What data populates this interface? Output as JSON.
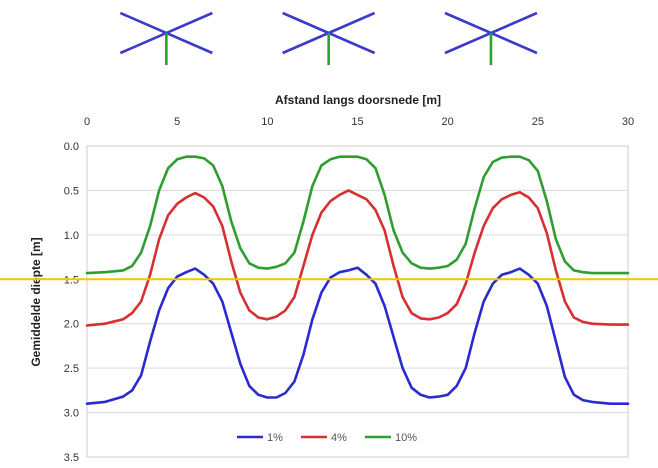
{
  "chart_data": {
    "type": "line",
    "xlabel": "Afstand langs doorsnede [m]",
    "ylabel": "Gemiddelde diepte [m]",
    "x_axis_position": "top",
    "y_inverted": true,
    "xlim": [
      0,
      30
    ],
    "ylim": [
      0,
      3.5
    ],
    "x_ticks": [
      "0",
      "5",
      "10",
      "15",
      "20",
      "25",
      "30"
    ],
    "y_ticks": [
      "0.0",
      "0.5",
      "1.0",
      "1.5",
      "2.0",
      "2.5",
      "3.0",
      "3.5"
    ],
    "grid": "horizontal",
    "legend_position": "bottom-center",
    "reference_line": {
      "y": 1.5,
      "color": "#f5c400"
    },
    "crosses": {
      "x": [
        4.4,
        13.4,
        22.4
      ],
      "arm_color": "#3b3bc8",
      "stem_color": "#2ca02c"
    },
    "series": [
      {
        "name": "1%",
        "color": "#2a2ad0",
        "x": [
          0,
          1,
          2,
          2.5,
          3,
          3.5,
          4,
          4.5,
          5,
          5.5,
          6,
          6.5,
          7,
          7.5,
          8,
          8.5,
          9,
          9.5,
          10,
          10.5,
          11,
          11.5,
          12,
          12.5,
          13,
          13.5,
          14,
          14.5,
          15,
          15.5,
          16,
          16.5,
          17,
          17.5,
          18,
          18.5,
          19,
          19.5,
          20,
          20.5,
          21,
          21.5,
          22,
          22.5,
          23,
          23.5,
          24,
          24.5,
          25,
          25.5,
          26,
          26.5,
          27,
          27.5,
          28,
          29,
          30
        ],
        "values": [
          2.9,
          2.88,
          2.82,
          2.75,
          2.58,
          2.2,
          1.85,
          1.6,
          1.47,
          1.42,
          1.38,
          1.45,
          1.55,
          1.75,
          2.1,
          2.45,
          2.7,
          2.8,
          2.83,
          2.83,
          2.78,
          2.65,
          2.35,
          1.95,
          1.65,
          1.48,
          1.42,
          1.4,
          1.37,
          1.45,
          1.55,
          1.8,
          2.15,
          2.5,
          2.72,
          2.8,
          2.83,
          2.82,
          2.8,
          2.7,
          2.5,
          2.1,
          1.75,
          1.55,
          1.45,
          1.42,
          1.38,
          1.45,
          1.55,
          1.8,
          2.2,
          2.6,
          2.8,
          2.86,
          2.88,
          2.9,
          2.9
        ]
      },
      {
        "name": "4%",
        "color": "#d63030",
        "x": [
          0,
          1,
          2,
          2.5,
          3,
          3.5,
          4,
          4.5,
          5,
          5.5,
          6,
          6.5,
          7,
          7.5,
          8,
          8.5,
          9,
          9.5,
          10,
          10.5,
          11,
          11.5,
          12,
          12.5,
          13,
          13.5,
          14,
          14.5,
          15,
          15.5,
          16,
          16.5,
          17,
          17.5,
          18,
          18.5,
          19,
          19.5,
          20,
          20.5,
          21,
          21.5,
          22,
          22.5,
          23,
          23.5,
          24,
          24.5,
          25,
          25.5,
          26,
          26.5,
          27,
          27.5,
          28,
          29,
          30
        ],
        "values": [
          2.02,
          2.0,
          1.95,
          1.88,
          1.75,
          1.45,
          1.05,
          0.78,
          0.65,
          0.58,
          0.53,
          0.58,
          0.68,
          0.9,
          1.3,
          1.65,
          1.85,
          1.93,
          1.95,
          1.92,
          1.85,
          1.7,
          1.35,
          1.0,
          0.75,
          0.62,
          0.55,
          0.5,
          0.55,
          0.6,
          0.72,
          0.95,
          1.35,
          1.7,
          1.88,
          1.94,
          1.95,
          1.93,
          1.88,
          1.78,
          1.55,
          1.2,
          0.9,
          0.7,
          0.6,
          0.55,
          0.52,
          0.58,
          0.7,
          0.98,
          1.4,
          1.75,
          1.93,
          1.98,
          2.0,
          2.01,
          2.01
        ]
      },
      {
        "name": "10%",
        "color": "#2e9e2e",
        "x": [
          0,
          1,
          2,
          2.5,
          3,
          3.5,
          4,
          4.5,
          5,
          5.5,
          6,
          6.5,
          7,
          7.5,
          8,
          8.5,
          9,
          9.5,
          10,
          10.5,
          11,
          11.5,
          12,
          12.5,
          13,
          13.5,
          14,
          14.5,
          15,
          15.5,
          16,
          16.5,
          17,
          17.5,
          18,
          18.5,
          19,
          19.5,
          20,
          20.5,
          21,
          21.5,
          22,
          22.5,
          23,
          23.5,
          24,
          24.5,
          25,
          25.5,
          26,
          26.5,
          27,
          27.5,
          28,
          29,
          30
        ],
        "values": [
          1.43,
          1.42,
          1.4,
          1.35,
          1.2,
          0.9,
          0.5,
          0.25,
          0.15,
          0.12,
          0.12,
          0.14,
          0.22,
          0.45,
          0.85,
          1.15,
          1.32,
          1.37,
          1.38,
          1.36,
          1.32,
          1.2,
          0.85,
          0.45,
          0.22,
          0.15,
          0.12,
          0.12,
          0.12,
          0.15,
          0.25,
          0.55,
          0.95,
          1.2,
          1.32,
          1.37,
          1.38,
          1.37,
          1.35,
          1.28,
          1.1,
          0.7,
          0.35,
          0.18,
          0.13,
          0.12,
          0.12,
          0.16,
          0.28,
          0.62,
          1.05,
          1.3,
          1.4,
          1.42,
          1.43,
          1.43,
          1.43
        ]
      }
    ]
  }
}
